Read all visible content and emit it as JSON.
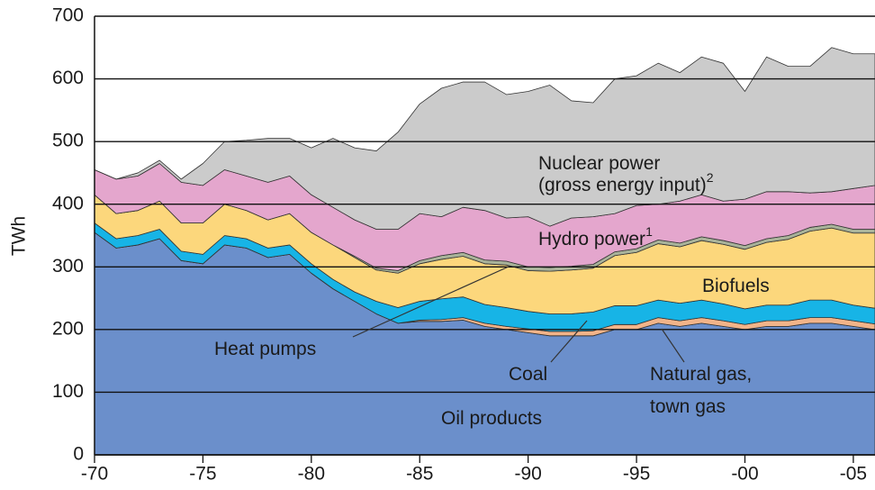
{
  "chart_data": {
    "type": "stacked-area",
    "y_label": "TWh",
    "x": [
      1970,
      1971,
      1972,
      1973,
      1974,
      1975,
      1976,
      1977,
      1978,
      1979,
      1980,
      1981,
      1982,
      1983,
      1984,
      1985,
      1986,
      1987,
      1988,
      1989,
      1990,
      1991,
      1992,
      1993,
      1994,
      1995,
      1996,
      1997,
      1998,
      1999,
      2000,
      2001,
      2002,
      2003,
      2004,
      2005,
      2006
    ],
    "xlim": [
      1970,
      2006
    ],
    "xticks": [
      {
        "value": 1970,
        "label": "-70"
      },
      {
        "value": 1975,
        "label": "-75"
      },
      {
        "value": 1980,
        "label": "-80"
      },
      {
        "value": 1985,
        "label": "-85"
      },
      {
        "value": 1990,
        "label": "-90"
      },
      {
        "value": 1995,
        "label": "-95"
      },
      {
        "value": 2000,
        "label": "-00"
      },
      {
        "value": 2005,
        "label": "-05"
      }
    ],
    "ylim": [
      0,
      700
    ],
    "yticks": [
      0,
      100,
      200,
      300,
      400,
      500,
      600,
      700
    ],
    "grid": true,
    "series": [
      {
        "name": "Oil products",
        "color": "#6b8fcb",
        "values": [
          355,
          330,
          335,
          345,
          310,
          305,
          335,
          330,
          315,
          320,
          290,
          265,
          245,
          225,
          210,
          213,
          213,
          215,
          205,
          200,
          195,
          190,
          190,
          190,
          200,
          200,
          210,
          205,
          210,
          205,
          200,
          205,
          205,
          210,
          210,
          205,
          200
        ]
      },
      {
        "name": "Natural gas,",
        "name_line2": "town gas",
        "color": "#f2b489",
        "values": [
          0,
          0,
          0,
          0,
          0,
          0,
          0,
          0,
          0,
          0,
          0,
          0,
          0,
          0,
          0,
          2,
          3,
          4,
          5,
          5,
          6,
          7,
          7,
          8,
          8,
          8,
          9,
          9,
          9,
          9,
          8,
          9,
          9,
          9,
          9,
          9,
          9
        ]
      },
      {
        "name": "Coal",
        "color": "#17b4e6",
        "values": [
          15,
          15,
          15,
          15,
          15,
          15,
          15,
          15,
          15,
          15,
          15,
          15,
          15,
          20,
          25,
          30,
          33,
          33,
          30,
          30,
          28,
          28,
          28,
          30,
          30,
          30,
          28,
          28,
          28,
          27,
          25,
          25,
          25,
          28,
          28,
          25,
          25
        ]
      },
      {
        "name": "Biofuels",
        "color": "#fcd77c",
        "values": [
          45,
          40,
          40,
          45,
          45,
          50,
          50,
          45,
          45,
          50,
          50,
          55,
          55,
          50,
          55,
          60,
          63,
          65,
          65,
          68,
          65,
          68,
          70,
          70,
          80,
          85,
          90,
          90,
          95,
          95,
          95,
          100,
          105,
          110,
          115,
          115,
          120
        ]
      },
      {
        "name": "Heat pumps",
        "color": "#a9b39a",
        "values": [
          0,
          0,
          0,
          0,
          0,
          0,
          0,
          0,
          0,
          0,
          0,
          0,
          2,
          3,
          4,
          5,
          6,
          6,
          6,
          6,
          6,
          6,
          6,
          6,
          6,
          6,
          6,
          6,
          6,
          6,
          6,
          6,
          6,
          6,
          6,
          6,
          6
        ]
      },
      {
        "name": "Hydro power",
        "footnote_mark": "1",
        "color": "#e4a6cd",
        "values": [
          40,
          55,
          55,
          60,
          65,
          60,
          55,
          55,
          60,
          60,
          60,
          60,
          58,
          62,
          66,
          75,
          62,
          72,
          79,
          69,
          80,
          66,
          77,
          76,
          61,
          69,
          57,
          67,
          67,
          63,
          74,
          75,
          70,
          55,
          52,
          65,
          70
        ]
      },
      {
        "name": "Nuclear power",
        "name_line2": "(gross energy input)",
        "footnote_mark": "2",
        "color": "#cbcbcb",
        "values": [
          0,
          0,
          5,
          5,
          5,
          35,
          45,
          57,
          70,
          60,
          75,
          110,
          115,
          125,
          155,
          175,
          205,
          200,
          205,
          197,
          200,
          225,
          187,
          182,
          215,
          207,
          225,
          205,
          220,
          220,
          172,
          215,
          200,
          202,
          230,
          215,
          210
        ]
      }
    ]
  }
}
